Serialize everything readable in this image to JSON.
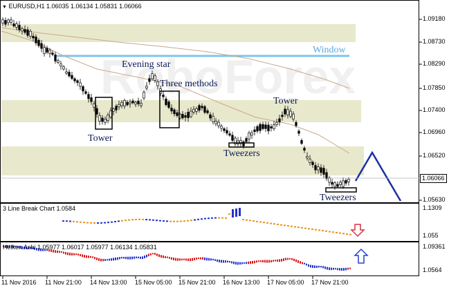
{
  "main_chart": {
    "header": "EURUSD,H1  1.06035 1.06134 1.05831 1.06066",
    "price_levels": [
      "1.09180",
      "1.08730",
      "1.08290",
      "1.07850",
      "1.07400",
      "1.06960",
      "1.06520",
      "1.06066",
      "1.05630"
    ],
    "current_price": "1.06066",
    "watermark": "RoboForex",
    "annotations": {
      "window": "Window",
      "evening_star": "Evening star",
      "three_methods": "Three methods",
      "tower_1": "Tower",
      "tower_2": "Tower",
      "tweezers_1": "Tweezers",
      "tweezers_2": "Tweezers"
    },
    "colors": {
      "zone": "#e8e8cc",
      "window_line": "#7fc4ee",
      "ma": "#c9a98a",
      "arrow": "#1a2fa0"
    }
  },
  "indicator_1": {
    "header": "3 Line Break Chart 1.0584",
    "levels": [
      "1.1309",
      "1.055"
    ],
    "arrow": "down-arrow-icon",
    "colors": {
      "up": "#2233cc",
      "down": "#e8951a",
      "arrow": "#d63040"
    }
  },
  "indicator_2": {
    "header": "Heiken Ashi 1.05977 1.06017 1.05977 1.06134 1.05831",
    "levels": [
      "1.09361",
      "1.0564"
    ],
    "arrow": "up-arrow-icon",
    "colors": {
      "up": "#2233cc",
      "down": "#d81a1a",
      "arrow": "#2244cc"
    }
  },
  "time_axis": [
    "11 Nov 2016",
    "11 Nov 21:00",
    "14 Nov 13:00",
    "15 Nov 05:00",
    "15 Nov 21:00",
    "16 Nov 13:00",
    "17 Nov 05:00",
    "17 Nov 21:00"
  ]
}
